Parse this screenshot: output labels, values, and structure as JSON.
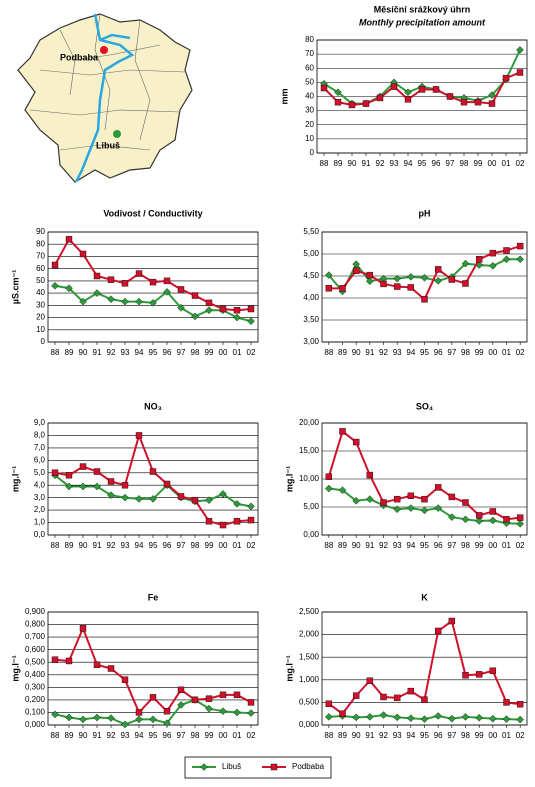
{
  "map": {
    "labels": [
      "Podbaba",
      "Libuš"
    ]
  },
  "legend": [
    {
      "name": "Libuš",
      "color": "#2e9a3a",
      "marker": "diamond"
    },
    {
      "name": "Podbaba",
      "color": "#d0112b",
      "marker": "square"
    }
  ],
  "chart_data": [
    {
      "type": "line",
      "title": "Měsíční srážkový úhrn",
      "subtitle": "Monthly precipitation amount",
      "ylabel": "mm",
      "categories": [
        "88",
        "89",
        "90",
        "91",
        "92",
        "93",
        "94",
        "95",
        "96",
        "97",
        "98",
        "99",
        "00",
        "01",
        "02"
      ],
      "ylim": [
        0,
        80
      ],
      "yticks": [
        0,
        10,
        20,
        30,
        40,
        50,
        60,
        70,
        80
      ],
      "grid": true,
      "series": [
        {
          "color": "#2e9a3a",
          "marker": "diamond",
          "values": [
            49,
            43,
            35,
            35,
            40,
            50,
            43,
            47,
            45,
            40,
            39,
            37,
            41,
            52,
            73
          ]
        },
        {
          "color": "#d0112b",
          "marker": "square",
          "values": [
            46,
            36,
            34,
            35,
            39,
            47,
            38,
            45,
            45,
            40,
            36,
            36,
            35,
            53,
            57
          ]
        }
      ]
    },
    {
      "type": "line",
      "title": "Vodivost / Conductivity",
      "ylabel": "µS.cm⁻¹",
      "categories": [
        "88",
        "89",
        "90",
        "91",
        "92",
        "93",
        "94",
        "95",
        "96",
        "97",
        "98",
        "99",
        "00",
        "01",
        "02"
      ],
      "ylim": [
        0,
        90
      ],
      "yticks": [
        0,
        10,
        20,
        30,
        40,
        50,
        60,
        70,
        80,
        90
      ],
      "grid": true,
      "series": [
        {
          "color": "#2e9a3a",
          "marker": "diamond",
          "values": [
            46,
            44,
            33,
            40,
            35,
            33,
            33,
            32,
            41,
            28,
            21,
            26,
            26,
            20,
            17
          ]
        },
        {
          "color": "#d0112b",
          "marker": "square",
          "values": [
            63,
            84,
            72,
            54,
            51,
            48,
            56,
            49,
            50,
            43,
            38,
            32,
            27,
            26,
            27
          ]
        }
      ]
    },
    {
      "type": "line",
      "title": "pH",
      "categories": [
        "88",
        "89",
        "90",
        "91",
        "92",
        "93",
        "94",
        "95",
        "96",
        "97",
        "98",
        "99",
        "00",
        "01",
        "02"
      ],
      "ylim": [
        3,
        5.5
      ],
      "yticks": [
        {
          "value": 3,
          "label": "3,00"
        },
        {
          "value": 3.5,
          "label": "3,50"
        },
        {
          "value": 4,
          "label": "4,00"
        },
        {
          "value": 4.5,
          "label": "4,50"
        },
        {
          "value": 5,
          "label": "5,00"
        },
        {
          "value": 5.5,
          "label": "5,50"
        }
      ],
      "grid": true,
      "series": [
        {
          "color": "#2e9a3a",
          "marker": "diamond",
          "values": [
            4.52,
            4.15,
            4.77,
            4.38,
            4.44,
            4.44,
            4.48,
            4.46,
            4.39,
            4.48,
            4.78,
            4.75,
            4.73,
            4.88,
            4.88
          ]
        },
        {
          "color": "#d0112b",
          "marker": "square",
          "values": [
            4.22,
            4.22,
            4.62,
            4.52,
            4.32,
            4.26,
            4.24,
            3.97,
            4.65,
            4.42,
            4.33,
            4.88,
            5.02,
            5.08,
            5.18
          ]
        }
      ]
    },
    {
      "type": "line",
      "title": "NO₃",
      "ylabel": "mg.l⁻¹",
      "categories": [
        "88",
        "89",
        "90",
        "91",
        "92",
        "93",
        "94",
        "95",
        "96",
        "97",
        "98",
        "99",
        "00",
        "01",
        "02"
      ],
      "ylim": [
        0,
        9
      ],
      "yticks": [
        {
          "value": 0,
          "label": "0,0"
        },
        {
          "value": 1,
          "label": "1,0"
        },
        {
          "value": 2,
          "label": "2,0"
        },
        {
          "value": 3,
          "label": "3,0"
        },
        {
          "value": 4,
          "label": "4,0"
        },
        {
          "value": 5,
          "label": "5,0"
        },
        {
          "value": 6,
          "label": "6,0"
        },
        {
          "value": 7,
          "label": "7,0"
        },
        {
          "value": 8,
          "label": "8,0"
        },
        {
          "value": 9,
          "label": "9,0"
        }
      ],
      "grid": true,
      "series": [
        {
          "color": "#2e9a3a",
          "marker": "diamond",
          "values": [
            4.8,
            3.9,
            3.9,
            3.9,
            3.2,
            3.0,
            2.9,
            2.9,
            4.0,
            3.0,
            2.7,
            2.8,
            3.3,
            2.5,
            2.3
          ]
        },
        {
          "color": "#d0112b",
          "marker": "square",
          "values": [
            5.0,
            4.8,
            5.5,
            5.1,
            4.3,
            4.0,
            8.0,
            5.1,
            4.1,
            3.1,
            2.8,
            1.1,
            0.8,
            1.1,
            1.2
          ]
        }
      ]
    },
    {
      "type": "line",
      "title": "SO₄",
      "ylabel": "mg.l⁻¹",
      "categories": [
        "88",
        "89",
        "90",
        "91",
        "92",
        "93",
        "94",
        "95",
        "96",
        "97",
        "98",
        "99",
        "00",
        "01",
        "02"
      ],
      "ylim": [
        0,
        20
      ],
      "yticks": [
        {
          "value": 0,
          "label": "0,00"
        },
        {
          "value": 5,
          "label": "5,00"
        },
        {
          "value": 10,
          "label": "10,00"
        },
        {
          "value": 15,
          "label": "15,00"
        },
        {
          "value": 20,
          "label": "20,00"
        }
      ],
      "grid": true,
      "series": [
        {
          "color": "#2e9a3a",
          "marker": "diamond",
          "values": [
            8.3,
            8.0,
            6.1,
            6.4,
            5.3,
            4.6,
            4.8,
            4.4,
            4.8,
            3.2,
            2.8,
            2.5,
            2.6,
            2.1,
            2.0
          ]
        },
        {
          "color": "#d0112b",
          "marker": "square",
          "values": [
            10.4,
            18.5,
            16.6,
            10.7,
            5.8,
            6.4,
            7.0,
            6.4,
            8.5,
            6.8,
            5.8,
            3.5,
            4.2,
            2.8,
            3.1
          ]
        }
      ]
    },
    {
      "type": "line",
      "title": "Fe",
      "ylabel": "mg.l⁻¹",
      "categories": [
        "88",
        "89",
        "90",
        "91",
        "92",
        "93",
        "94",
        "95",
        "96",
        "97",
        "98",
        "99",
        "00",
        "01",
        "02"
      ],
      "ylim": [
        0,
        0.9
      ],
      "yticks": [
        {
          "value": 0,
          "label": "0,000"
        },
        {
          "value": 0.1,
          "label": "0,100"
        },
        {
          "value": 0.2,
          "label": "0,200"
        },
        {
          "value": 0.3,
          "label": "0,300"
        },
        {
          "value": 0.4,
          "label": "0,400"
        },
        {
          "value": 0.5,
          "label": "0,500"
        },
        {
          "value": 0.6,
          "label": "0,600"
        },
        {
          "value": 0.7,
          "label": "0,700"
        },
        {
          "value": 0.8,
          "label": "0,800"
        },
        {
          "value": 0.9,
          "label": "0,900"
        }
      ],
      "grid": true,
      "series": [
        {
          "color": "#2e9a3a",
          "marker": "diamond",
          "values": [
            0.085,
            0.06,
            0.045,
            0.06,
            0.055,
            0.005,
            0.045,
            0.045,
            0.015,
            0.16,
            0.2,
            0.13,
            0.11,
            0.1,
            0.095
          ]
        },
        {
          "color": "#d0112b",
          "marker": "square",
          "values": [
            0.52,
            0.51,
            0.77,
            0.48,
            0.45,
            0.36,
            0.1,
            0.22,
            0.11,
            0.28,
            0.2,
            0.21,
            0.24,
            0.24,
            0.18
          ]
        }
      ]
    },
    {
      "type": "line",
      "title": "K",
      "ylabel": "mg.l⁻¹",
      "categories": [
        "88",
        "89",
        "90",
        "91",
        "92",
        "93",
        "94",
        "95",
        "96",
        "97",
        "98",
        "99",
        "00",
        "01",
        "02"
      ],
      "ylim": [
        0,
        2.5
      ],
      "yticks": [
        {
          "value": 0,
          "label": "0,000"
        },
        {
          "value": 0.5,
          "label": "0,500"
        },
        {
          "value": 1,
          "label": "1,000"
        },
        {
          "value": 1.5,
          "label": "1,500"
        },
        {
          "value": 2,
          "label": "2,000"
        },
        {
          "value": 2.5,
          "label": "2,500"
        }
      ],
      "grid": true,
      "series": [
        {
          "color": "#2e9a3a",
          "marker": "diamond",
          "values": [
            0.18,
            0.2,
            0.17,
            0.18,
            0.22,
            0.17,
            0.15,
            0.13,
            0.2,
            0.14,
            0.18,
            0.16,
            0.14,
            0.13,
            0.12
          ]
        },
        {
          "color": "#d0112b",
          "marker": "square",
          "values": [
            0.47,
            0.25,
            0.65,
            0.98,
            0.62,
            0.6,
            0.75,
            0.56,
            2.08,
            2.3,
            1.1,
            1.12,
            1.2,
            0.5,
            0.46
          ]
        }
      ]
    }
  ]
}
